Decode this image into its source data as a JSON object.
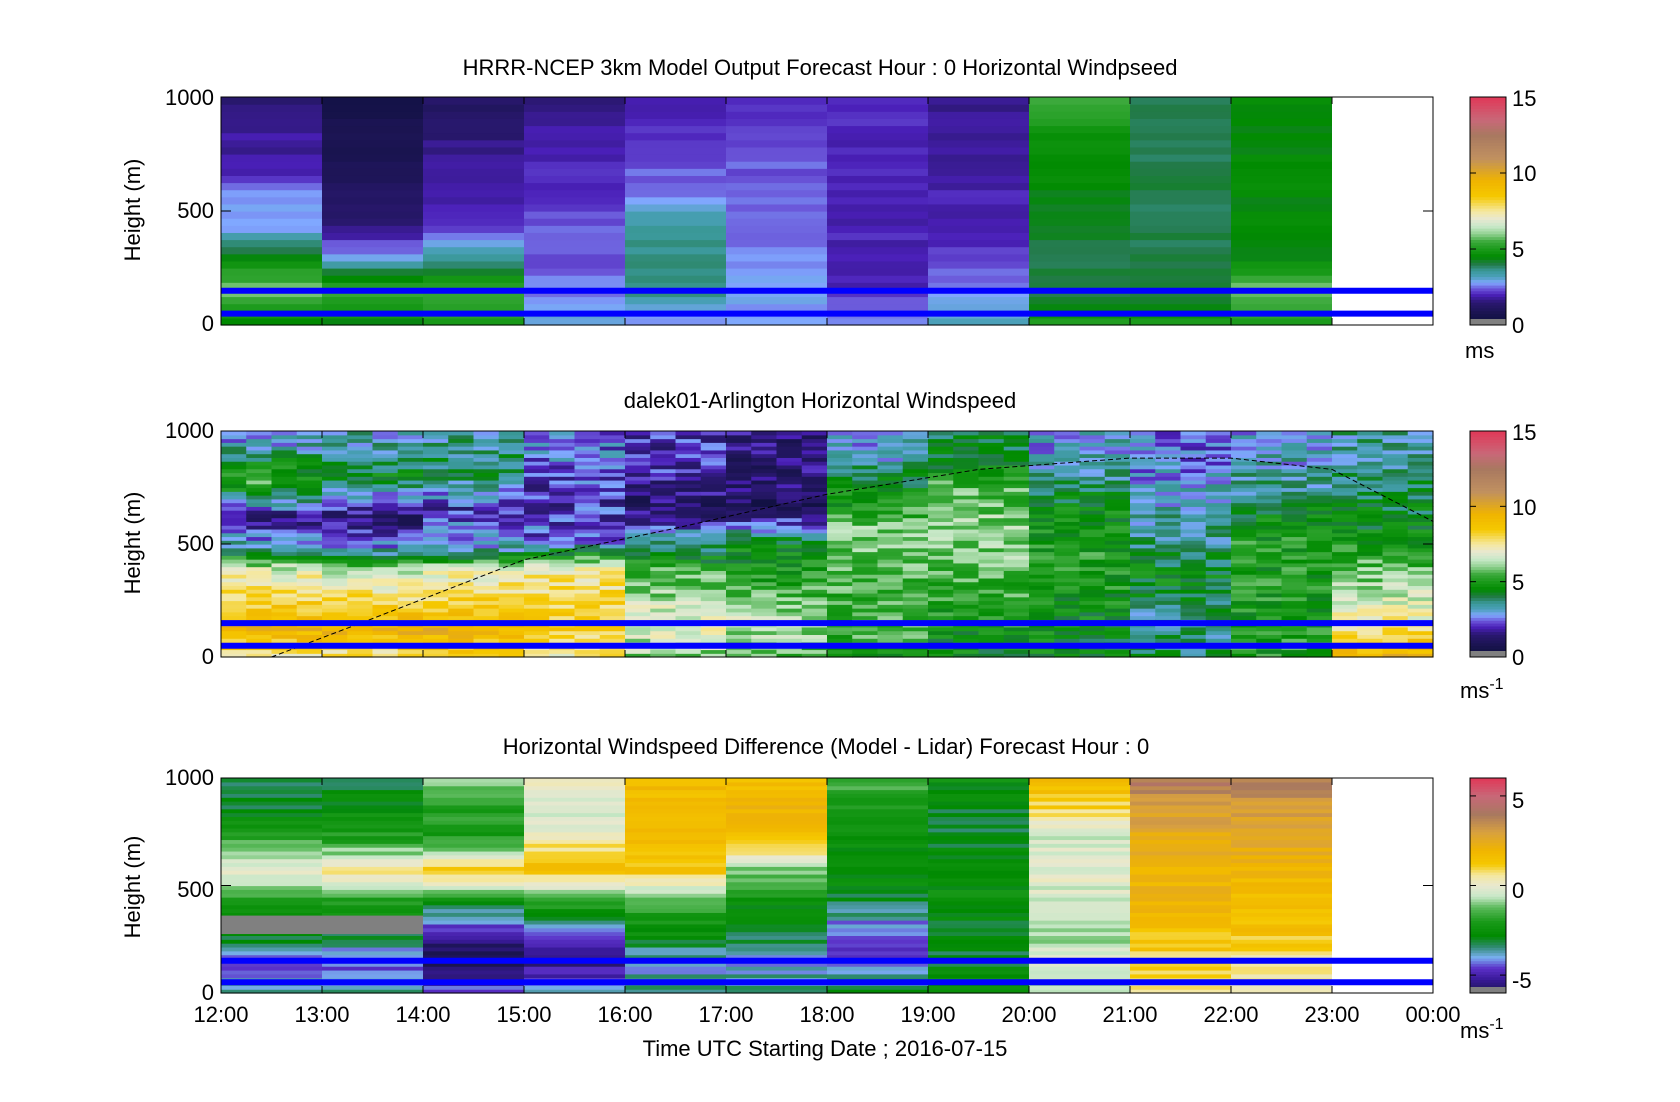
{
  "palettes": {
    "blues": [
      "#0b0f3a",
      "#1a1450",
      "#241565",
      "#3a1a9a",
      "#4a1fb8",
      "#5b30c8",
      "#6a55d8",
      "#6f7fe6",
      "#80a8ff",
      "#79b0f0"
    ],
    "greens": [
      "#3a9898",
      "#2f8a70",
      "#237a4a",
      "#0c7a20",
      "#008a00",
      "#1a9a1a",
      "#3aa83a",
      "#5cba5c",
      "#8fd08f",
      "#c8e8c8"
    ],
    "warm": [
      "#e8e8d0",
      "#f5e8a0",
      "#f5c800",
      "#f0b400",
      "#d8a040",
      "#c09060",
      "#a87860",
      "#c86878",
      "#e03858"
    ],
    "gray": "#808080",
    "blue_line": "#0000ff"
  },
  "chart_data": [
    {
      "type": "heatmap",
      "title": "HRRR-NCEP 3km Model Output   Forecast Hour : 0 Horizontal Windpseed",
      "xlabel": "",
      "ylabel": "Height (m)",
      "ylim": [
        0,
        1000
      ],
      "yticks": [
        "0",
        "500",
        "1000"
      ],
      "x_range": [
        "12:00",
        "00:00"
      ],
      "colorbar": {
        "label": "ms",
        "ticks": [
          "0",
          "5",
          "10",
          "15"
        ],
        "range": [
          0,
          15
        ]
      },
      "horizontal_lines_m": [
        150,
        50
      ],
      "columns": [
        {
          "start": "12:00",
          "bottom_to_top": [
            4.5,
            6.0,
            4.5,
            2.8,
            2.8,
            1.8,
            1.8,
            1.5
          ]
        },
        {
          "start": "13:00",
          "bottom_to_top": [
            4.5,
            5.5,
            3.0,
            1.5,
            1.2,
            1.0,
            0.8,
            0.5
          ]
        },
        {
          "start": "14:00",
          "bottom_to_top": [
            5.0,
            5.5,
            3.5,
            2.0,
            2.0,
            1.8,
            1.5,
            1.2
          ]
        },
        {
          "start": "15:00",
          "bottom_to_top": [
            3.0,
            2.6,
            2.4,
            2.4,
            2.2,
            2.0,
            2.0,
            1.6
          ]
        },
        {
          "start": "16:00",
          "bottom_to_top": [
            2.6,
            3.8,
            3.8,
            3.5,
            2.6,
            2.4,
            2.2,
            1.8
          ]
        },
        {
          "start": "17:00",
          "bottom_to_top": [
            2.8,
            2.8,
            2.6,
            2.4,
            2.4,
            2.4,
            2.2,
            2.0
          ]
        },
        {
          "start": "18:00",
          "bottom_to_top": [
            2.8,
            2.0,
            2.0,
            2.0,
            2.0,
            2.0,
            2.0,
            2.2
          ]
        },
        {
          "start": "19:00",
          "bottom_to_top": [
            3.2,
            2.8,
            2.2,
            2.0,
            2.0,
            1.8,
            1.8,
            1.6
          ]
        },
        {
          "start": "20:00",
          "bottom_to_top": [
            5.0,
            4.0,
            4.0,
            4.2,
            4.4,
            4.6,
            4.8,
            5.5
          ]
        },
        {
          "start": "21:00",
          "bottom_to_top": [
            5.0,
            4.0,
            4.0,
            4.0,
            4.0,
            4.0,
            4.0,
            4.0
          ]
        },
        {
          "start": "22:00",
          "bottom_to_top": [
            5.0,
            6.0,
            4.5,
            4.5,
            4.5,
            4.5,
            4.5,
            4.5
          ]
        }
      ]
    },
    {
      "type": "heatmap",
      "title": "dalek01-Arlington  Horizontal Windspeed",
      "xlabel": "",
      "ylabel": "Height (m)",
      "ylim": [
        0,
        1000
      ],
      "yticks": [
        "0",
        "500",
        "1000"
      ],
      "x_range": [
        "12:00",
        "00:00"
      ],
      "colorbar": {
        "label": "ms-1",
        "ticks": [
          "0",
          "5",
          "10",
          "15"
        ],
        "range": [
          0,
          15
        ]
      },
      "horizontal_lines_m": [
        150,
        50
      ],
      "dashed_curve_note": "boundary-layer height estimate",
      "dashed_curve": [
        [
          0.5,
          0
        ],
        [
          1.5,
          170
        ],
        [
          3.0,
          430
        ],
        [
          4.5,
          570
        ],
        [
          6.0,
          720
        ],
        [
          7.5,
          830
        ],
        [
          9.0,
          880
        ],
        [
          10.0,
          880
        ],
        [
          11.0,
          830
        ],
        [
          12.0,
          600
        ]
      ],
      "segments": [
        {
          "start": "12:00",
          "levels": [
            [
              0,
              7.5
            ],
            [
              120,
              9.5
            ],
            [
              380,
              7.0
            ],
            [
              480,
              3.5
            ],
            [
              620,
              1.5
            ],
            [
              780,
              5.5
            ],
            [
              950,
              3.0
            ]
          ]
        },
        {
          "start": "13:00",
          "levels": [
            [
              0,
              7.5
            ],
            [
              120,
              9.5
            ],
            [
              380,
              6.5
            ],
            [
              480,
              3.0
            ],
            [
              620,
              1.2
            ],
            [
              800,
              4.5
            ],
            [
              950,
              3.2
            ]
          ]
        },
        {
          "start": "14:00",
          "levels": [
            [
              0,
              8.0
            ],
            [
              120,
              9.5
            ],
            [
              380,
              7.0
            ],
            [
              480,
              3.2
            ],
            [
              650,
              2.0
            ],
            [
              820,
              4.0
            ],
            [
              950,
              3.5
            ]
          ]
        },
        {
          "start": "15:00",
          "levels": [
            [
              0,
              7.5
            ],
            [
              140,
              8.5
            ],
            [
              380,
              7.5
            ],
            [
              520,
              2.5
            ],
            [
              700,
              2.0
            ],
            [
              850,
              2.5
            ]
          ]
        },
        {
          "start": "16:00",
          "levels": [
            [
              0,
              6.0
            ],
            [
              150,
              7.0
            ],
            [
              380,
              5.5
            ],
            [
              500,
              3.5
            ],
            [
              650,
              1.2
            ],
            [
              850,
              2.0
            ]
          ]
        },
        {
          "start": "17:00",
          "levels": [
            [
              0,
              5.5
            ],
            [
              160,
              6.5
            ],
            [
              350,
              5.0
            ],
            [
              500,
              4.5
            ],
            [
              650,
              1.0
            ],
            [
              850,
              1.5
            ]
          ]
        },
        {
          "start": "18:00",
          "levels": [
            [
              0,
              5.0
            ],
            [
              160,
              5.5
            ],
            [
              350,
              5.5
            ],
            [
              550,
              6.0
            ],
            [
              750,
              4.5
            ],
            [
              900,
              3.0
            ]
          ]
        },
        {
          "start": "19:00",
          "levels": [
            [
              0,
              4.5
            ],
            [
              160,
              5.0
            ],
            [
              350,
              5.5
            ],
            [
              550,
              6.2
            ],
            [
              750,
              5.5
            ],
            [
              900,
              4.0
            ]
          ]
        },
        {
          "start": "20:00",
          "levels": [
            [
              0,
              4.5
            ],
            [
              160,
              4.5
            ],
            [
              350,
              5.0
            ],
            [
              550,
              5.0
            ],
            [
              750,
              4.0
            ],
            [
              900,
              3.0
            ]
          ]
        },
        {
          "start": "21:00",
          "levels": [
            [
              0,
              4.0
            ],
            [
              160,
              3.5
            ],
            [
              350,
              4.5
            ],
            [
              550,
              3.5
            ],
            [
              750,
              3.0
            ],
            [
              900,
              2.5
            ]
          ]
        },
        {
          "start": "22:00",
          "levels": [
            [
              0,
              5.0
            ],
            [
              160,
              5.0
            ],
            [
              350,
              5.0
            ],
            [
              550,
              5.0
            ],
            [
              750,
              3.5
            ],
            [
              900,
              3.0
            ]
          ]
        },
        {
          "start": "23:00",
          "levels": [
            [
              0,
              9.5
            ],
            [
              160,
              7.5
            ],
            [
              350,
              6.0
            ],
            [
              550,
              4.5
            ],
            [
              750,
              4.0
            ],
            [
              900,
              3.5
            ]
          ]
        }
      ]
    },
    {
      "type": "heatmap",
      "title": "Horizontal Windspeed Difference (Model - Lidar) Forecast Hour : 0",
      "xlabel": "Time UTC  Starting Date ; 2016-07-15",
      "ylabel": "Height (m)",
      "ylim": [
        0,
        1000
      ],
      "yticks": [
        "0",
        "500",
        "1000"
      ],
      "xticks": [
        "12:00",
        "13:00",
        "14:00",
        "15:00",
        "16:00",
        "17:00",
        "18:00",
        "19:00",
        "20:00",
        "21:00",
        "22:00",
        "23:00",
        "00:00"
      ],
      "colorbar": {
        "label": "ms-1",
        "ticks": [
          "-5",
          "0",
          "5"
        ],
        "range": [
          -6,
          6
        ]
      },
      "horizontal_lines_m": [
        150,
        50
      ],
      "missing_gray": [
        {
          "start": "12:00",
          "end": "14:00",
          "from_m": 330,
          "to_m": 360
        }
      ],
      "columns": [
        {
          "start": "12:00",
          "bottom_to_top": [
            -3.5,
            -4.5,
            -2.5,
            -2.0,
            0.0,
            -1.5,
            -3.0,
            -3.0
          ]
        },
        {
          "start": "13:00",
          "bottom_to_top": [
            -3.5,
            -4.5,
            -3.0,
            -2.0,
            1.0,
            -2.0,
            -2.5,
            -3.0
          ]
        },
        {
          "start": "14:00",
          "bottom_to_top": [
            -4.5,
            -6.0,
            -5.0,
            -2.5,
            1.5,
            -2.0,
            -2.0,
            -1.0
          ]
        },
        {
          "start": "15:00",
          "bottom_to_top": [
            -4.0,
            -5.5,
            -4.0,
            -1.5,
            1.5,
            0.5,
            -0.5,
            0.0
          ]
        },
        {
          "start": "16:00",
          "bottom_to_top": [
            -3.5,
            -4.0,
            -2.5,
            -1.5,
            1.5,
            1.5,
            2.0,
            1.5
          ]
        },
        {
          "start": "17:00",
          "bottom_to_top": [
            -3.5,
            -4.0,
            -3.0,
            -2.5,
            -1.0,
            1.5,
            2.0,
            1.5
          ]
        },
        {
          "start": "18:00",
          "bottom_to_top": [
            -3.0,
            -4.5,
            -4.5,
            -3.0,
            -2.5,
            -2.5,
            -2.0,
            -1.5
          ]
        },
        {
          "start": "19:00",
          "bottom_to_top": [
            -2.5,
            -3.0,
            -3.0,
            -2.5,
            -2.5,
            -3.0,
            -3.0,
            -2.5
          ]
        },
        {
          "start": "20:00",
          "bottom_to_top": [
            -1.0,
            0.0,
            -1.0,
            -0.5,
            0.0,
            -0.5,
            1.0,
            1.5
          ]
        },
        {
          "start": "21:00",
          "bottom_to_top": [
            0.5,
            1.0,
            1.5,
            2.0,
            2.0,
            2.5,
            3.0,
            4.0
          ]
        },
        {
          "start": "22:00",
          "bottom_to_top": [
            0.5,
            0.5,
            1.5,
            1.5,
            2.0,
            2.5,
            3.0,
            4.0
          ]
        }
      ]
    }
  ]
}
